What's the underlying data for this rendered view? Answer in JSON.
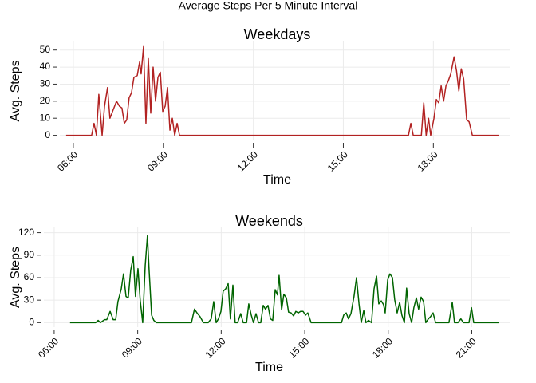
{
  "title": "Average Steps Per 5 Minute Interval",
  "chart_data": [
    {
      "type": "line",
      "title": "Weekdays",
      "x_label": "Time",
      "y_label": "Avg. Steps",
      "color": "#b22222",
      "xlim": [
        5.55,
        20.57
      ],
      "ylim": [
        -3,
        55
      ],
      "xticks": [
        {
          "value": 6,
          "label": "06:00"
        },
        {
          "value": 9,
          "label": "09:00"
        },
        {
          "value": 12,
          "label": "12:00"
        },
        {
          "value": 15,
          "label": "15:00"
        },
        {
          "value": 18,
          "label": "18:00"
        }
      ],
      "yticks": [
        0,
        10,
        20,
        30,
        40,
        50
      ],
      "grid": true,
      "x": [
        5.76,
        6.61,
        6.69,
        6.77,
        6.85,
        6.96,
        7.04,
        7.14,
        7.22,
        7.33,
        7.44,
        7.54,
        7.62,
        7.7,
        7.78,
        7.86,
        7.94,
        8.02,
        8.13,
        8.21,
        8.26,
        8.34,
        8.42,
        8.5,
        8.58,
        8.66,
        8.74,
        8.82,
        8.9,
        8.98,
        9.06,
        9.14,
        9.22,
        9.3,
        9.38,
        9.46,
        9.54,
        17.17,
        17.25,
        17.33,
        17.6,
        17.68,
        17.76,
        17.84,
        17.91,
        18.02,
        18.1,
        18.18,
        18.26,
        18.34,
        18.42,
        18.5,
        18.58,
        18.69,
        18.77,
        18.85,
        18.93,
        19.01,
        19.11,
        19.19,
        19.3,
        20.18
      ],
      "values": [
        0,
        0,
        7,
        0,
        24,
        0,
        17,
        28,
        10,
        15,
        20,
        17,
        16,
        7,
        9,
        22,
        25,
        34,
        35,
        43,
        36,
        52,
        7,
        45,
        13,
        40,
        20,
        34,
        37,
        14,
        17,
        28,
        3,
        10,
        0,
        7,
        0,
        0,
        7,
        0,
        0,
        19,
        0,
        10,
        0,
        10,
        21,
        19,
        29,
        20,
        29,
        32,
        36,
        46,
        38,
        26,
        39,
        33,
        9,
        8,
        0,
        0
      ]
    },
    {
      "type": "line",
      "title": "Weekends",
      "x_label": "Time",
      "y_label": "Avg. Steps",
      "color": "#006400",
      "xlim": [
        5.63,
        22.39
      ],
      "ylim": [
        -6,
        127
      ],
      "xticks": [
        {
          "value": 6,
          "label": "06:00"
        },
        {
          "value": 9,
          "label": "09:00"
        },
        {
          "value": 12,
          "label": "12:00"
        },
        {
          "value": 15,
          "label": "15:00"
        },
        {
          "value": 18,
          "label": "18:00"
        },
        {
          "value": 21,
          "label": "21:00"
        }
      ],
      "yticks": [
        0,
        30,
        60,
        90,
        120
      ],
      "grid": true,
      "x": [
        6.57,
        7.49,
        7.58,
        7.66,
        7.81,
        7.89,
        8.01,
        8.12,
        8.21,
        8.29,
        8.41,
        8.49,
        8.58,
        8.66,
        8.75,
        8.84,
        8.92,
        9.01,
        9.09,
        9.18,
        9.27,
        9.35,
        9.41,
        9.5,
        9.58,
        9.67,
        9.78,
        10.93,
        11.04,
        11.13,
        11.24,
        11.36,
        11.53,
        11.64,
        11.73,
        11.82,
        11.9,
        11.99,
        12.07,
        12.16,
        12.25,
        12.33,
        12.42,
        12.5,
        12.59,
        12.7,
        12.79,
        12.91,
        12.99,
        13.08,
        13.16,
        13.25,
        13.34,
        13.42,
        13.51,
        13.59,
        13.68,
        13.77,
        13.85,
        13.94,
        14.02,
        14.08,
        14.17,
        14.25,
        14.34,
        14.42,
        14.51,
        14.6,
        14.68,
        14.77,
        14.85,
        14.94,
        15.03,
        15.11,
        15.23,
        16.32,
        16.4,
        16.49,
        16.57,
        16.66,
        16.77,
        16.86,
        16.95,
        17.03,
        17.12,
        17.2,
        17.29,
        17.4,
        17.49,
        17.58,
        17.66,
        17.75,
        17.83,
        17.89,
        17.98,
        18.06,
        18.15,
        18.23,
        18.32,
        18.41,
        18.49,
        18.58,
        18.66,
        18.75,
        18.84,
        18.92,
        19.01,
        19.09,
        19.18,
        19.27,
        19.35,
        19.44,
        19.52,
        19.61,
        19.7,
        20.18,
        20.3,
        20.38,
        20.5,
        20.61,
        20.7,
        20.9,
        20.99,
        21.07,
        21.96
      ],
      "values": [
        0,
        0,
        3,
        0,
        4,
        4,
        15,
        4,
        4,
        28,
        45,
        65,
        35,
        33,
        70,
        88,
        35,
        72,
        30,
        0,
        76,
        116,
        70,
        10,
        3,
        0,
        0,
        0,
        18,
        13,
        8,
        0,
        0,
        5,
        28,
        0,
        5,
        15,
        42,
        45,
        52,
        5,
        50,
        0,
        0,
        12,
        0,
        0,
        25,
        10,
        0,
        12,
        0,
        0,
        23,
        18,
        23,
        5,
        3,
        44,
        37,
        63,
        17,
        38,
        33,
        14,
        13,
        9,
        15,
        13,
        15,
        15,
        10,
        13,
        0,
        0,
        10,
        13,
        5,
        12,
        35,
        60,
        25,
        0,
        16,
        0,
        3,
        0,
        45,
        62,
        25,
        29,
        24,
        13,
        57,
        65,
        60,
        31,
        13,
        27,
        10,
        0,
        46,
        12,
        0,
        20,
        33,
        18,
        34,
        28,
        0,
        5,
        8,
        13,
        0,
        0,
        27,
        0,
        0,
        5,
        0,
        0,
        20,
        0,
        0
      ]
    }
  ]
}
